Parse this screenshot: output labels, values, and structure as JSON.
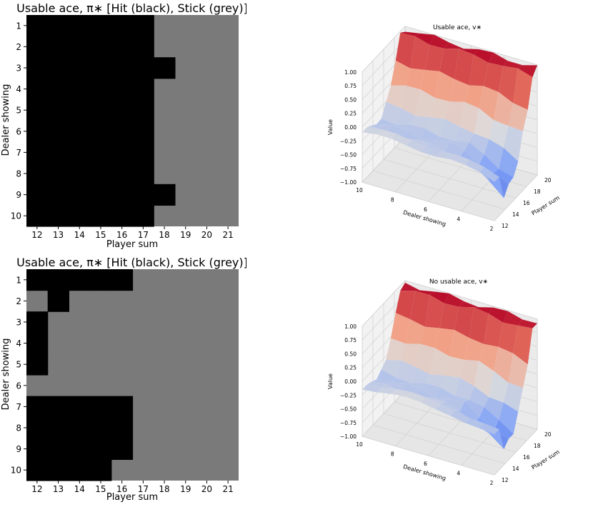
{
  "chart_data": [
    {
      "type": "heatmap",
      "title": "Usable ace, π∗  [Hit (black), Stick (grey)]",
      "xlabel": "Player sum",
      "ylabel": "Dealer showing",
      "x": [
        12,
        13,
        14,
        15,
        16,
        17,
        18,
        19,
        20,
        21
      ],
      "y": [
        1,
        2,
        3,
        4,
        5,
        6,
        7,
        8,
        9,
        10
      ],
      "legend": {
        "hit": "black",
        "stick": "grey"
      },
      "colors": {
        "hit": "#000000",
        "stick": "#7a7a7a"
      },
      "values": [
        [
          1,
          1,
          1,
          1,
          1,
          1,
          0,
          0,
          0,
          0
        ],
        [
          1,
          1,
          1,
          1,
          1,
          1,
          0,
          0,
          0,
          0
        ],
        [
          1,
          1,
          1,
          1,
          1,
          1,
          1,
          0,
          0,
          0
        ],
        [
          1,
          1,
          1,
          1,
          1,
          1,
          0,
          0,
          0,
          0
        ],
        [
          1,
          1,
          1,
          1,
          1,
          1,
          0,
          0,
          0,
          0
        ],
        [
          1,
          1,
          1,
          1,
          1,
          1,
          0,
          0,
          0,
          0
        ],
        [
          1,
          1,
          1,
          1,
          1,
          1,
          0,
          0,
          0,
          0
        ],
        [
          1,
          1,
          1,
          1,
          1,
          1,
          0,
          0,
          0,
          0
        ],
        [
          1,
          1,
          1,
          1,
          1,
          1,
          1,
          0,
          0,
          0
        ],
        [
          1,
          1,
          1,
          1,
          1,
          1,
          0,
          0,
          0,
          0
        ]
      ]
    },
    {
      "type": "heatmap",
      "title": "Usable ace, π∗  [Hit (black), Stick (grey)]",
      "xlabel": "Player sum",
      "ylabel": "Dealer showing",
      "x": [
        12,
        13,
        14,
        15,
        16,
        17,
        18,
        19,
        20,
        21
      ],
      "y": [
        1,
        2,
        3,
        4,
        5,
        6,
        7,
        8,
        9,
        10
      ],
      "legend": {
        "hit": "black",
        "stick": "grey"
      },
      "colors": {
        "hit": "#000000",
        "stick": "#7a7a7a"
      },
      "values": [
        [
          1,
          1,
          1,
          1,
          1,
          0,
          0,
          0,
          0,
          0
        ],
        [
          0,
          1,
          0,
          0,
          0,
          0,
          0,
          0,
          0,
          0
        ],
        [
          1,
          0,
          0,
          0,
          0,
          0,
          0,
          0,
          0,
          0
        ],
        [
          1,
          0,
          0,
          0,
          0,
          0,
          0,
          0,
          0,
          0
        ],
        [
          1,
          0,
          0,
          0,
          0,
          0,
          0,
          0,
          0,
          0
        ],
        [
          0,
          0,
          0,
          0,
          0,
          0,
          0,
          0,
          0,
          0
        ],
        [
          1,
          1,
          1,
          1,
          1,
          0,
          0,
          0,
          0,
          0
        ],
        [
          1,
          1,
          1,
          1,
          1,
          0,
          0,
          0,
          0,
          0
        ],
        [
          1,
          1,
          1,
          1,
          1,
          0,
          0,
          0,
          0,
          0
        ],
        [
          1,
          1,
          1,
          1,
          0,
          0,
          0,
          0,
          0,
          0
        ]
      ]
    },
    {
      "type": "surface",
      "title": "Usable ace, v∗",
      "xlabel": "Dealer showing",
      "ylabel": "Player sum",
      "zlabel": "Value",
      "x_ticks": [
        "10",
        "8",
        "6",
        "4",
        "2"
      ],
      "y_ticks": [
        "12",
        "14",
        "16",
        "18",
        "20"
      ],
      "z_ticks": [
        "1.00",
        "0.75",
        "0.50",
        "0.25",
        "0.00",
        "−0.25",
        "−0.50",
        "−0.75",
        "−1.00"
      ],
      "zlim": [
        -1,
        1
      ],
      "colormap": "coolwarm"
    },
    {
      "type": "surface",
      "title": "No usable ace, v∗",
      "xlabel": "Dealer showing",
      "ylabel": "Player sum",
      "zlabel": "Value",
      "x_ticks": [
        "10",
        "8",
        "6",
        "4",
        "2"
      ],
      "y_ticks": [
        "12",
        "14",
        "16",
        "18",
        "20"
      ],
      "z_ticks": [
        "1.00",
        "0.75",
        "0.50",
        "0.25",
        "0.00",
        "−0.25",
        "−0.50",
        "−0.75",
        "−1.00"
      ],
      "zlim": [
        -1,
        1
      ],
      "colormap": "coolwarm"
    }
  ]
}
